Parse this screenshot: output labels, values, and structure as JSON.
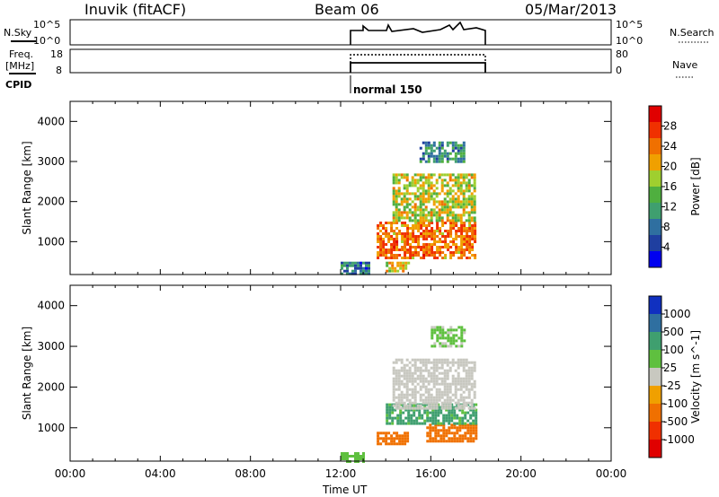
{
  "header": {
    "station": "Inuvik (fitACF)",
    "beam": "Beam 06",
    "date": "05/Mar/2013"
  },
  "aux_panels": {
    "nsky_label": "N.Sky",
    "nsky_ticks": [
      "10^5",
      "10^0"
    ],
    "nsearch_label": "N.Search",
    "nsearch_ticks": [
      "10^5",
      "10^0"
    ],
    "freq_label_1": "Freq.",
    "freq_label_2": "[MHz]",
    "freq_ticks": [
      "18",
      "8"
    ],
    "nave_label": "Nave",
    "nave_ticks": [
      "80",
      "0"
    ],
    "cpid_label": "CPID",
    "cpid_text": "normal 150"
  },
  "colors": {
    "power_scale": [
      "#0000f0",
      "#1f3fa0",
      "#2f6fa0",
      "#3f9f6f",
      "#4faf3f",
      "#9fcf2f",
      "#f0a000",
      "#f07000",
      "#f03000",
      "#e00000"
    ],
    "velocity_scale": [
      "#1030c0",
      "#2f6fa0",
      "#3f9f6f",
      "#5fc03f",
      "#c8c8c0",
      "#f0a000",
      "#f07000",
      "#f03000",
      "#e00000"
    ]
  },
  "chart_data": [
    {
      "type": "heatmap",
      "title": "",
      "xlabel": "",
      "ylabel": "Slant Range [km]",
      "x_ticks": [
        "00:00",
        "04:00",
        "08:00",
        "12:00",
        "16:00",
        "20:00",
        "00:00"
      ],
      "y_ticks": [
        "1000",
        "2000",
        "3000",
        "4000"
      ],
      "xlim": [
        0,
        24
      ],
      "ylim": [
        180,
        4500
      ],
      "colorbar_label": "Power [dB]",
      "colorbar_ticks": [
        "4",
        "8",
        "12",
        "16",
        "20",
        "24",
        "28"
      ],
      "colorbar_range": [
        0,
        32
      ],
      "data_extent_hours": [
        12,
        18
      ],
      "echo_bands": [
        {
          "start_hour": 12.0,
          "end_hour": 13.2,
          "range_low": 200,
          "range_high": 500,
          "power": 8
        },
        {
          "start_hour": 14.0,
          "end_hour": 15.0,
          "range_low": 250,
          "range_high": 500,
          "power": 20
        },
        {
          "start_hour": 13.6,
          "end_hour": 18.0,
          "range_low": 600,
          "range_high": 1500,
          "power": 24
        },
        {
          "start_hour": 14.3,
          "end_hour": 18.0,
          "range_low": 1500,
          "range_high": 2700,
          "power": 18
        },
        {
          "start_hour": 15.5,
          "end_hour": 17.5,
          "range_low": 3000,
          "range_high": 3500,
          "power": 10
        }
      ]
    },
    {
      "type": "heatmap",
      "title": "",
      "xlabel": "Time UT",
      "ylabel": "Slant Range [km]",
      "x_ticks": [
        "00:00",
        "04:00",
        "08:00",
        "12:00",
        "16:00",
        "20:00",
        "00:00"
      ],
      "y_ticks": [
        "1000",
        "2000",
        "3000",
        "4000"
      ],
      "xlim": [
        0,
        24
      ],
      "ylim": [
        180,
        4500
      ],
      "colorbar_label": "Velocity [m s^-1]",
      "colorbar_ticks": [
        "1000",
        "500",
        "100",
        "25",
        "-25",
        "-100",
        "-500",
        "-1000"
      ],
      "data_extent_hours": [
        12,
        18
      ],
      "echo_bands": [
        {
          "start_hour": 12.0,
          "end_hour": 13.0,
          "range_low": 200,
          "range_high": 400,
          "velocity": 60
        },
        {
          "start_hour": 13.6,
          "end_hour": 15.0,
          "range_low": 600,
          "range_high": 900,
          "velocity": -300
        },
        {
          "start_hour": 15.8,
          "end_hour": 18.0,
          "range_low": 650,
          "range_high": 1100,
          "velocity": -300
        },
        {
          "start_hour": 14.0,
          "end_hour": 18.0,
          "range_low": 1100,
          "range_high": 1600,
          "velocity": 150
        },
        {
          "start_hour": 14.3,
          "end_hour": 18.0,
          "range_low": 1500,
          "range_high": 2700,
          "velocity": 0
        },
        {
          "start_hour": 16.0,
          "end_hour": 17.5,
          "range_low": 3000,
          "range_high": 3500,
          "velocity": 40
        }
      ]
    }
  ]
}
